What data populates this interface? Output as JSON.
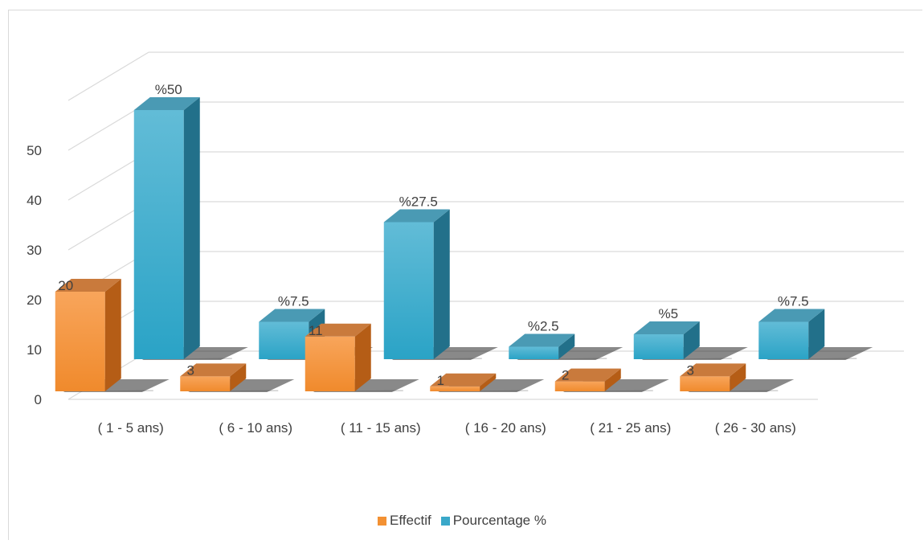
{
  "chart_data": {
    "type": "bar",
    "categories": [
      "( 1 - 5 ans)",
      "( 6 - 10 ans)",
      "( 11 - 15 ans)",
      "( 16 - 20 ans)",
      "( 21 - 25 ans)",
      "( 26 - 30 ans)"
    ],
    "series": [
      {
        "name": "Effectif",
        "values": [
          20,
          3,
          11,
          1,
          2,
          3
        ],
        "labels": [
          "20",
          "3",
          "11",
          "1",
          "2",
          "3"
        ],
        "color": "#f39133"
      },
      {
        "name": "Pourcentage %",
        "values": [
          50,
          7.5,
          27.5,
          2.5,
          5,
          7.5
        ],
        "labels": [
          "%50",
          "%7.5",
          "%27.5",
          "%2.5",
          "%5",
          "%7.5"
        ],
        "color": "#3aa8c9"
      }
    ],
    "yticks": [
      "0",
      "10",
      "20",
      "30",
      "40",
      "50"
    ],
    "ylim": [
      0,
      50
    ],
    "grid": true,
    "legend_position": "bottom",
    "style": "3d-clustered-column"
  }
}
